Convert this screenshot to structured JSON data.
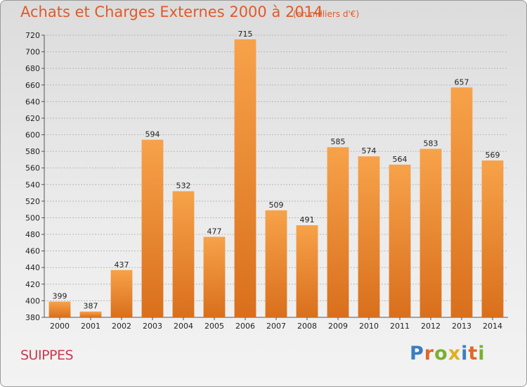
{
  "chart_data": {
    "type": "bar",
    "title": "Achats et Charges Externes 2000 à 2014",
    "subtitle": "(en milliers d'€)",
    "categories": [
      "2000",
      "2001",
      "2002",
      "2003",
      "2004",
      "2005",
      "2006",
      "2007",
      "2008",
      "2009",
      "2010",
      "2011",
      "2012",
      "2013",
      "2014"
    ],
    "values": [
      399,
      387,
      437,
      594,
      532,
      477,
      715,
      509,
      491,
      585,
      574,
      564,
      583,
      657,
      569
    ],
    "ylim": [
      380,
      720
    ],
    "yticks": [
      380,
      400,
      420,
      440,
      460,
      480,
      500,
      520,
      540,
      560,
      580,
      600,
      620,
      640,
      660,
      680,
      700,
      720
    ],
    "grid": true,
    "bar_color": "#f0923a"
  },
  "footer": {
    "city": "SUIPPES",
    "logo_letters": [
      {
        "ch": "P",
        "color": "#3a7dc0"
      },
      {
        "ch": "r",
        "color": "#e0672a"
      },
      {
        "ch": "o",
        "color": "#7ab030"
      },
      {
        "ch": "x",
        "color": "#e0b020"
      },
      {
        "ch": "i",
        "color": "#3a7dc0"
      },
      {
        "ch": "t",
        "color": "#e0672a"
      },
      {
        "ch": "i",
        "color": "#7ab030"
      }
    ]
  }
}
